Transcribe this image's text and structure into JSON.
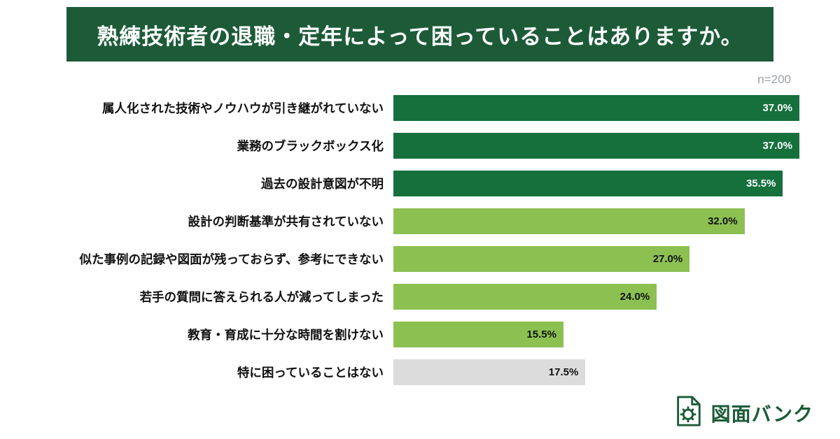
{
  "header": {
    "title": "熟練技術者の退職・定年によって困っていることはありますか。",
    "bg_color": "#1d5b38"
  },
  "chart_data": {
    "type": "bar",
    "orientation": "horizontal",
    "n_label": "n=200",
    "title": "熟練技術者の退職・定年によって困っていることはありますか。",
    "categories": [
      "属人化された技術やノウハウが引き継がれていない",
      "業務のブラックボックス化",
      "過去の設計意図が不明",
      "設計の判断基準が共有されていない",
      "似た事例の記録や図面が残っておらず、参考にできない",
      "若手の質問に答えられる人が減ってしまった",
      "教育・育成に十分な時間を割けない",
      "特に困っていることはない"
    ],
    "values": [
      37.0,
      37.0,
      35.5,
      32.0,
      27.0,
      24.0,
      15.5,
      17.5
    ],
    "value_labels": [
      "37.0%",
      "37.0%",
      "35.5%",
      "32.0%",
      "27.0%",
      "24.0%",
      "15.5%",
      "17.5%"
    ],
    "bar_colors": [
      "#15703c",
      "#15703c",
      "#15703c",
      "#8cc152",
      "#8cc152",
      "#8cc152",
      "#8cc152",
      "#dcdcdc"
    ],
    "value_label_colors": [
      "#ffffff",
      "#ffffff",
      "#ffffff",
      "#111111",
      "#111111",
      "#111111",
      "#111111",
      "#111111"
    ],
    "xlim": [
      0,
      37
    ],
    "grid": false,
    "legend": "none"
  },
  "logo": {
    "text": "図面バンク",
    "color": "#1d5b38",
    "icon": "document-gear-icon"
  }
}
